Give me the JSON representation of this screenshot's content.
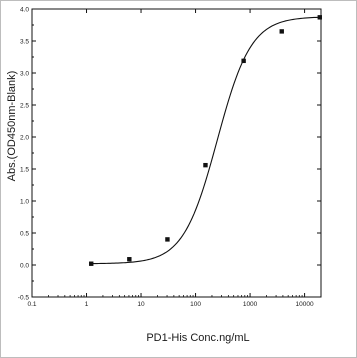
{
  "chart_data": {
    "type": "scatter",
    "xlabel": "PD1-His Conc.ng/mL",
    "ylabel": "Abs.(OD450nm-Blank)",
    "x_scale": "log",
    "xlim": [
      0.1,
      20000
    ],
    "ylim": [
      -0.5,
      4.0
    ],
    "x_ticks": [
      0.1,
      1,
      10,
      100,
      1000,
      10000
    ],
    "x_tick_labels": [
      "0.1",
      "1",
      "10",
      "100",
      "1000",
      "10000"
    ],
    "y_ticks": [
      -0.5,
      0.0,
      0.5,
      1.0,
      1.5,
      2.0,
      2.5,
      3.0,
      3.5,
      4.0
    ],
    "y_tick_labels": [
      "-0.5",
      "0.0",
      "0.5",
      "1.0",
      "1.5",
      "2.0",
      "2.5",
      "3.0",
      "3.5",
      "4.0"
    ],
    "grid": false,
    "series": [
      {
        "points": [
          {
            "x": 1.22,
            "y": 0.02
          },
          {
            "x": 6.1,
            "y": 0.09
          },
          {
            "x": 30.5,
            "y": 0.4
          },
          {
            "x": 152,
            "y": 1.56
          },
          {
            "x": 762,
            "y": 3.19
          },
          {
            "x": 3810,
            "y": 3.65
          },
          {
            "x": 19000,
            "y": 3.87
          }
        ],
        "fit": {
          "model": "4PL",
          "bottom": 0.02,
          "top": 3.88,
          "ec50": 250,
          "hill": 1.4
        }
      }
    ],
    "colors": {
      "marker": "#111111",
      "line": "#111111",
      "axis": "#111111"
    }
  }
}
